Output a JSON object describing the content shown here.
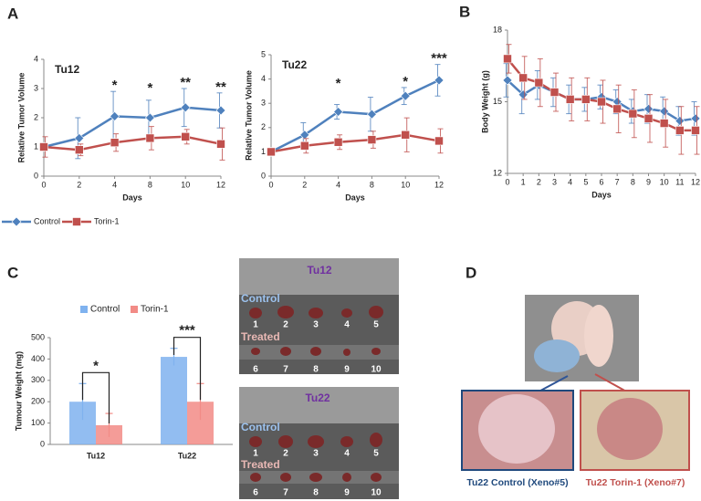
{
  "panel_labels": [
    "A",
    "B",
    "C",
    "D"
  ],
  "chart_data": [
    {
      "type": "line",
      "legend": [
        {
          "name": "Control",
          "color": "#4f81bd",
          "marker": "diamond"
        },
        {
          "name": "Torin-1",
          "color": "#c0504d",
          "marker": "square"
        }
      ],
      "panels": [
        {
          "title": "Tu12",
          "ylabel": "Relative Tumor Volume",
          "xlabel": "Days",
          "categories": [
            "0",
            "2",
            "4",
            "8",
            "10",
            "12"
          ],
          "ylim": [
            0,
            4
          ],
          "yticks": [
            0,
            1,
            2,
            3,
            4
          ],
          "series": [
            {
              "values": [
                1,
                1.3,
                2.05,
                2,
                2.35,
                2.25
              ],
              "errors": [
                0.1,
                0.7,
                0.85,
                0.6,
                0.65,
                0.6
              ]
            },
            {
              "values": [
                1,
                0.9,
                1.15,
                1.3,
                1.35,
                1.1
              ],
              "errors": [
                0.35,
                0.2,
                0.3,
                0.4,
                0.25,
                0.55
              ]
            }
          ],
          "annotations": [
            {
              "x": "4",
              "text": "*"
            },
            {
              "x": "8",
              "text": "*"
            },
            {
              "x": "10",
              "text": "**"
            },
            {
              "x": "12",
              "text": "**"
            }
          ]
        },
        {
          "title": "Tu22",
          "ylabel": "Relative Tumor Volume",
          "xlabel": "Days",
          "categories": [
            "0",
            "2",
            "4",
            "8",
            "10",
            "12"
          ],
          "ylim": [
            0,
            5
          ],
          "yticks": [
            0,
            1,
            2,
            3,
            4,
            5
          ],
          "series": [
            {
              "values": [
                1,
                1.7,
                2.65,
                2.55,
                3.3,
                3.95
              ],
              "errors": [
                0.1,
                0.5,
                0.3,
                0.7,
                0.35,
                0.65
              ]
            },
            {
              "values": [
                1,
                1.25,
                1.4,
                1.5,
                1.7,
                1.45
              ],
              "errors": [
                0.15,
                0.3,
                0.3,
                0.35,
                0.7,
                0.5
              ]
            }
          ],
          "annotations": [
            {
              "x": "4",
              "text": "*"
            },
            {
              "x": "10",
              "text": "*"
            },
            {
              "x": "12",
              "text": "***"
            }
          ]
        }
      ]
    },
    {
      "type": "line",
      "ylabel": "Body Weight (g)",
      "xlabel": "Days",
      "x": [
        0,
        1,
        2,
        3,
        4,
        5,
        6,
        7,
        8,
        9,
        10,
        11,
        12
      ],
      "xlim": [
        0,
        12
      ],
      "xticks": [
        0,
        1,
        2,
        3,
        4,
        5,
        6,
        7,
        8,
        9,
        10,
        11,
        12
      ],
      "ylim": [
        12,
        18
      ],
      "yticks": [
        12,
        15,
        18
      ],
      "series": [
        {
          "color": "#4f81bd",
          "marker": "diamond",
          "values": [
            15.9,
            15.3,
            15.7,
            15.4,
            15.1,
            15.1,
            15.2,
            15.0,
            14.6,
            14.7,
            14.6,
            14.2,
            14.3
          ],
          "errors": [
            0.7,
            0.8,
            0.6,
            0.6,
            0.6,
            0.5,
            0.5,
            0.5,
            0.5,
            0.6,
            0.6,
            0.6,
            0.7
          ]
        },
        {
          "color": "#c0504d",
          "marker": "square",
          "values": [
            16.8,
            16.0,
            15.8,
            15.4,
            15.1,
            15.1,
            15.0,
            14.7,
            14.5,
            14.3,
            14.1,
            13.8,
            13.8
          ],
          "errors": [
            0.6,
            0.9,
            1.0,
            0.8,
            0.9,
            0.9,
            0.9,
            1.0,
            1.0,
            1.0,
            1.0,
            1.0,
            1.0
          ]
        }
      ]
    },
    {
      "type": "bar",
      "ylabel": "Tumour Weight (mg)",
      "categories": [
        "Tu12",
        "Tu22"
      ],
      "ylim": [
        0,
        500
      ],
      "yticks": [
        0,
        100,
        200,
        300,
        400,
        500
      ],
      "series": [
        {
          "name": "Control",
          "color": "#7fb2ef",
          "values": [
            200,
            410
          ],
          "errors": [
            85,
            40
          ]
        },
        {
          "name": "Torin-1",
          "color": "#f28b86",
          "values": [
            90,
            200
          ],
          "errors": [
            55,
            85
          ]
        }
      ],
      "annotations": [
        {
          "category": "Tu12",
          "text": "*"
        },
        {
          "category": "Tu22",
          "text": "***"
        }
      ]
    }
  ],
  "photos": {
    "c_top": {
      "title": "Tu12",
      "row1": "Control",
      "row2": "Treated",
      "numbers": [
        "1",
        "2",
        "3",
        "4",
        "5",
        "6",
        "7",
        "8",
        "9",
        "10"
      ]
    },
    "c_bottom": {
      "title": "Tu22",
      "row1": "Control",
      "row2": "Treated",
      "numbers": [
        "1",
        "2",
        "3",
        "4",
        "5",
        "6",
        "7",
        "8",
        "9",
        "10"
      ]
    },
    "d_captions": [
      "Tu22 Control (Xeno#5)",
      "Tu22 Torin-1 (Xeno#7)"
    ]
  }
}
